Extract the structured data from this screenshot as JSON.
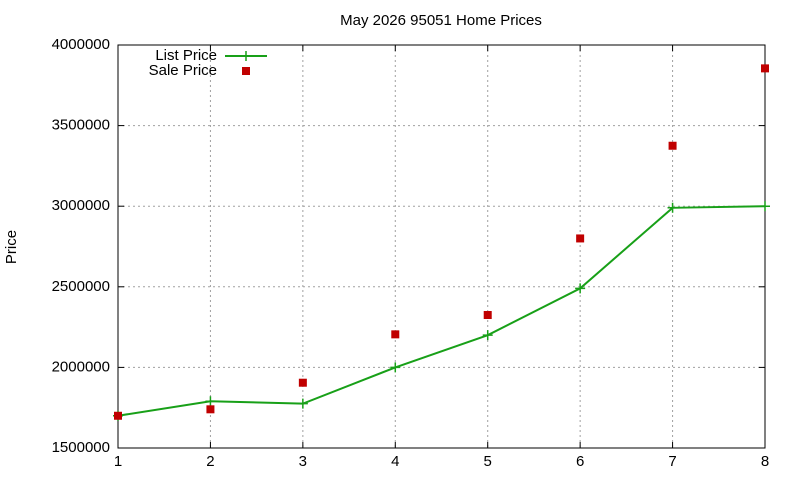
{
  "chart_data": {
    "type": "line",
    "title": "May 2026 95051 Home Prices",
    "y_label": "Price",
    "x": [
      1,
      2,
      3,
      4,
      5,
      6,
      7,
      8
    ],
    "series": [
      {
        "name": "List Price",
        "color": "#18a018",
        "line": true,
        "marker": "plus",
        "values": [
          1700000,
          1790000,
          1775000,
          2000000,
          2200000,
          2490000,
          2990000,
          3000000
        ]
      },
      {
        "name": "Sale Price",
        "color": "#c00000",
        "line": false,
        "marker": "square",
        "values": [
          1700000,
          1740000,
          1905000,
          2205000,
          2325000,
          2800000,
          3375000,
          3855000
        ]
      }
    ],
    "xlim": [
      1,
      8
    ],
    "xticks": [
      1,
      2,
      3,
      4,
      5,
      6,
      7,
      8
    ],
    "ylim": [
      1500000,
      4000000
    ],
    "yticks": [
      1500000,
      2000000,
      2500000,
      3000000,
      3500000,
      4000000
    ],
    "grid": true,
    "legend": "top-left"
  }
}
